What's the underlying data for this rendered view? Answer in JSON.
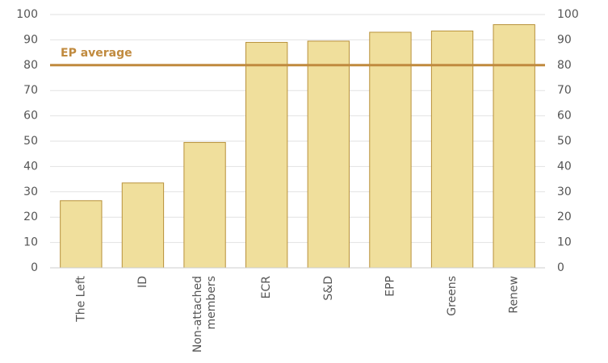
{
  "chart_data": {
    "type": "bar",
    "categories": [
      "The Left",
      "ID",
      "Non-attached members",
      "ECR",
      "S&D",
      "EPP",
      "Greens",
      "Renew"
    ],
    "values": [
      26.5,
      33.5,
      49.5,
      89,
      89.5,
      93,
      93.5,
      96
    ],
    "color": "#f0df9c",
    "edge_color": "#b8913a",
    "ylim": [
      0,
      100
    ],
    "yticks": [
      0,
      10,
      20,
      30,
      40,
      50,
      60,
      70,
      80,
      90,
      100
    ],
    "y2lim": [
      0,
      100
    ],
    "y2ticks": [
      0,
      10,
      20,
      30,
      40,
      50,
      60,
      70,
      80,
      90,
      100
    ],
    "grid": true,
    "reference_line": {
      "label": "EP average",
      "value": 80,
      "color": "#c08a3e"
    }
  }
}
